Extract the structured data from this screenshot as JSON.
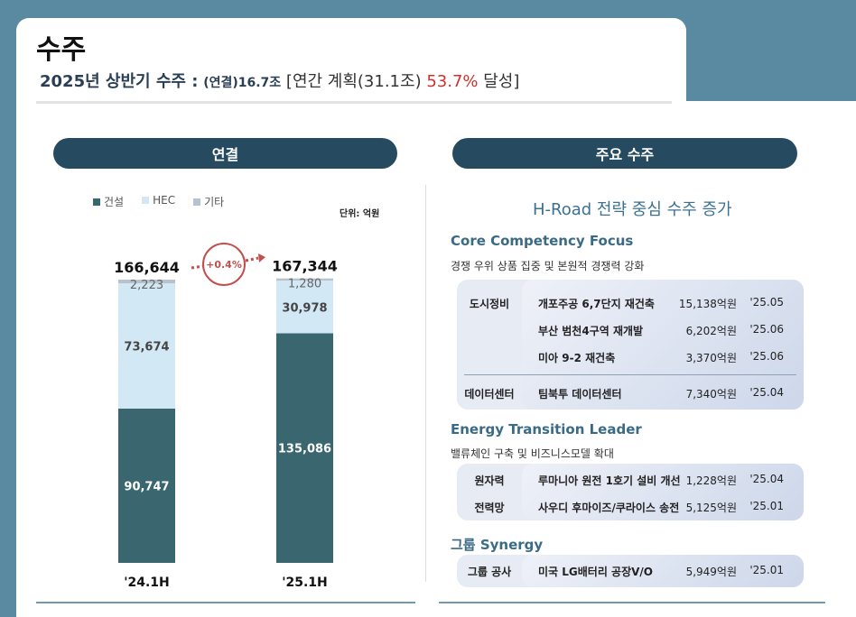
{
  "header": {
    "title": "수주",
    "subtitle_main": "2025년 상반기 수주 :",
    "subtitle_consol": "(연결)16.7조",
    "subtitle_plan": "[연간 계획(31.1조)",
    "subtitle_pct": "53.7%",
    "subtitle_end": "달성]"
  },
  "left_panel": {
    "pill": "연결",
    "unit": "단위: 억원"
  },
  "right_panel": {
    "pill": "주요 수주",
    "headline": "H-Road 전략 중심 수주 증가",
    "sections": [
      {
        "title": "Core Competency Focus",
        "subtitle": "경쟁 우위 상품 집중 및 본원적 경쟁력 강화",
        "rows": [
          {
            "category": "도시정비",
            "name": "개포주공 6,7단지 재건축",
            "amount": "15,138억원",
            "date": "'25.05"
          },
          {
            "category": "",
            "name": "부산 범천4구역 재개발",
            "amount": "6,202억원",
            "date": "'25.06"
          },
          {
            "category": "",
            "name": "미아 9-2 재건축",
            "amount": "3,370억원",
            "date": "'25.06"
          },
          {
            "category": "데이터센터",
            "name": "팀북투 데이터센터",
            "amount": "7,340억원",
            "date": "'25.04"
          }
        ]
      },
      {
        "title": "Energy Transition Leader",
        "subtitle": "밸류체인 구축 및 비즈니스모델 확대",
        "rows": [
          {
            "category": "원자력",
            "name": "루마니아 원전 1호기 설비 개선",
            "amount": "1,228억원",
            "date": "'25.04"
          },
          {
            "category": "전력망",
            "name": "사우디 후마이즈/쿠라이스 송전",
            "amount": "5,125억원",
            "date": "'25.01"
          }
        ]
      },
      {
        "title": "그룹 Synergy",
        "subtitle": "",
        "rows": [
          {
            "category": "그룹 공사",
            "name": "미국 LG배터리 공장V/O",
            "amount": "5,949억원",
            "date": "'25.01"
          }
        ]
      }
    ]
  },
  "chart_data": {
    "type": "bar",
    "stacked": true,
    "categories": [
      "'24.1H",
      "'25.1H"
    ],
    "series": [
      {
        "name": "건설",
        "values": [
          90747,
          135086
        ],
        "color": "#3a6670"
      },
      {
        "name": "HEC",
        "values": [
          73674,
          30978
        ],
        "color": "#d3e8f5"
      },
      {
        "name": "기타",
        "values": [
          2223,
          1280
        ],
        "color": "#b7c2cc"
      }
    ],
    "totals": [
      "166,644",
      "167,344"
    ],
    "labels": [
      [
        "90,747",
        "73,674",
        "2,223"
      ],
      [
        "135,086",
        "30,978",
        "1,280"
      ]
    ],
    "growth": "+0.4%",
    "unit": "단위: 억원",
    "legend": "top-left"
  }
}
